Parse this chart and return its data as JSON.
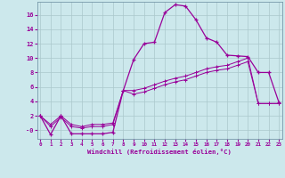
{
  "xlabel": "Windchill (Refroidissement éolien,°C)",
  "background_color": "#cce8ec",
  "grid_color": "#aac8cc",
  "line_color": "#990099",
  "x_ticks": [
    0,
    1,
    2,
    3,
    4,
    5,
    6,
    7,
    8,
    9,
    10,
    11,
    12,
    13,
    14,
    15,
    16,
    17,
    18,
    19,
    20,
    21,
    22,
    23
  ],
  "y_ticks": [
    0,
    2,
    4,
    6,
    8,
    10,
    12,
    14,
    16
  ],
  "y_tick_labels": [
    "-0",
    "2",
    "4",
    "6",
    "8",
    "10",
    "12",
    "14",
    "16"
  ],
  "ylim": [
    -1.2,
    17.8
  ],
  "xlim": [
    -0.3,
    23.3
  ],
  "line1_x": [
    0,
    1,
    2,
    3,
    4,
    5,
    6,
    7,
    8,
    9,
    10,
    11,
    12,
    13,
    14,
    15,
    16,
    17,
    18,
    19,
    20,
    21,
    22,
    23
  ],
  "line1_y": [
    2.0,
    -0.6,
    2.0,
    -0.5,
    -0.5,
    -0.5,
    -0.5,
    -0.3,
    5.5,
    9.8,
    12.0,
    12.2,
    16.3,
    17.4,
    17.2,
    15.3,
    12.8,
    12.2,
    10.4,
    10.3,
    10.2,
    8.0,
    8.0,
    3.8
  ],
  "line2_x": [
    0,
    1,
    2,
    3,
    4,
    5,
    6,
    7,
    8,
    9,
    10,
    11,
    12,
    13,
    14,
    15,
    16,
    17,
    18,
    19,
    20,
    21,
    22,
    23
  ],
  "line2_y": [
    2.0,
    0.5,
    1.8,
    0.5,
    0.3,
    0.5,
    0.5,
    0.8,
    5.5,
    5.5,
    5.8,
    6.3,
    6.8,
    7.2,
    7.5,
    8.0,
    8.5,
    8.8,
    9.0,
    9.5,
    10.0,
    3.7,
    3.7,
    3.7
  ],
  "line3_x": [
    0,
    1,
    2,
    3,
    4,
    5,
    6,
    7,
    8,
    9,
    10,
    11,
    12,
    13,
    14,
    15,
    16,
    17,
    18,
    19,
    20,
    21,
    22,
    23
  ],
  "line3_y": [
    2.0,
    0.8,
    2.0,
    0.8,
    0.5,
    0.8,
    0.8,
    1.0,
    5.5,
    5.0,
    5.3,
    5.8,
    6.3,
    6.7,
    7.0,
    7.5,
    8.0,
    8.3,
    8.5,
    9.0,
    9.5,
    3.7,
    3.7,
    3.7
  ]
}
